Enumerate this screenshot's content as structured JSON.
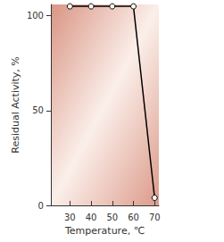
{
  "chart_data": {
    "type": "line",
    "x_label": "Temperature, ℃",
    "y_label": "Residual Activity, %",
    "x": [
      30,
      40,
      50,
      60,
      70
    ],
    "values": [
      105,
      105,
      105,
      105,
      4
    ],
    "color": "#000000",
    "marker": "hollow_circle",
    "xlim": [
      21,
      72
    ],
    "xticks": [
      30,
      40,
      50,
      60,
      70
    ],
    "ylim": [
      0,
      106
    ],
    "yticks": [
      0,
      50,
      100
    ],
    "grid": false
  }
}
